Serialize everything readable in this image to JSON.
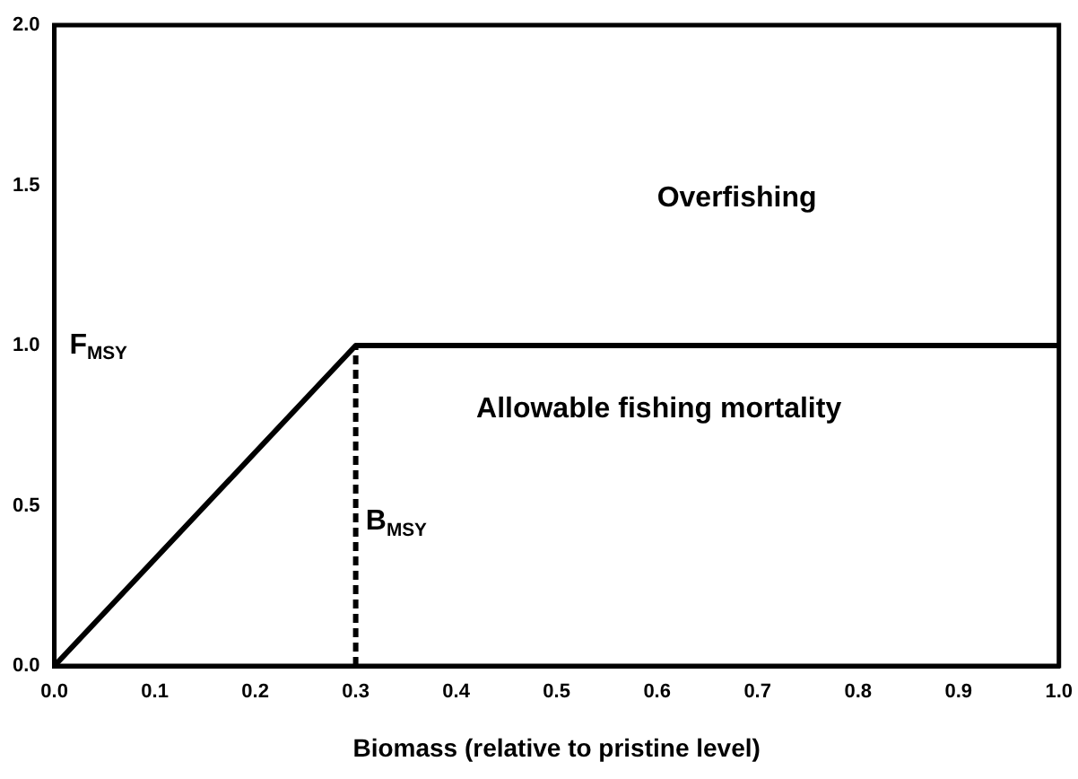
{
  "chart_data": {
    "type": "line",
    "xlabel": "Biomass (relative to pristine level)",
    "series": [
      {
        "color": "#000000",
        "x": [
          0,
          0.3,
          1
        ],
        "values": [
          0,
          1,
          1
        ],
        "line_style": "solid"
      },
      {
        "color": "#000000",
        "x": [
          0.3,
          0.3
        ],
        "values": [
          0,
          1
        ],
        "line_style": "dashed"
      }
    ],
    "xlim": [
      0,
      1
    ],
    "ylim": [
      0,
      2
    ],
    "xticks": [
      {
        "value": 0,
        "label": "0.0"
      },
      0.1,
      0.2,
      0.3,
      0.4,
      0.5,
      0.6,
      0.7,
      0.8,
      0.9,
      {
        "value": 1,
        "label": "1.0"
      }
    ],
    "yticks": [
      {
        "value": 0,
        "label": "0.0"
      },
      0.5,
      {
        "value": 1,
        "label": "1.0"
      },
      1.5,
      {
        "value": 2,
        "label": "2.0"
      }
    ],
    "annotations": [
      "Overfishing",
      "Allowable fishing mortality",
      "F$_{MSY}$",
      {
        "text": "B$_{MSY}$",
        "x": 0.31,
        "y": 0.45
      }
    ],
    "grid": false,
    "legend": false,
    "marker": "none"
  }
}
